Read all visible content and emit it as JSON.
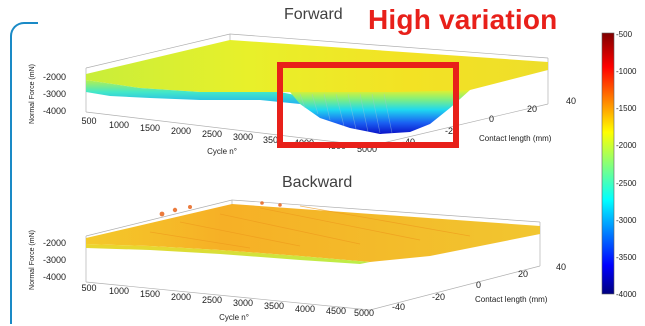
{
  "annotation": "High variation",
  "chart_data": [
    {
      "type": "surface",
      "title": "Forward",
      "xlabel": "Cycle n°",
      "ylabel": "Contact length (mm)",
      "zlabel": "Normal Force (mN)",
      "x_ticks": [
        "500",
        "1000",
        "1500",
        "2000",
        "2500",
        "3000",
        "3500",
        "4000",
        "4500",
        "5000"
      ],
      "y_ticks": [
        "-40",
        "-20",
        "0",
        "20",
        "40"
      ],
      "z_ticks": [
        "-2000",
        "-3000",
        "-4000"
      ],
      "xlim": [
        300,
        5000
      ],
      "ylim": [
        -45,
        45
      ],
      "zlim": [
        -4500,
        -1500
      ],
      "cycles": [
        300,
        1000,
        1500,
        2000,
        2500,
        3000,
        3500,
        3800,
        4000,
        4300,
        4500,
        4800,
        5000
      ],
      "force_min": [
        -1700,
        -1800,
        -1850,
        -1900,
        -1900,
        -1850,
        -2100,
        -2400,
        -3000,
        -3800,
        -4200,
        -3800,
        -2600
      ],
      "force_plateau": [
        -1600,
        -1650,
        -1650,
        -1700,
        -1700,
        -1700,
        -1700,
        -1750,
        -1800,
        -1800,
        -1800,
        -1750,
        -1700
      ]
    },
    {
      "type": "surface",
      "title": "Backward",
      "xlabel": "Cycle n°",
      "ylabel": "Contact length (mm)",
      "zlabel": "Normal Force (mN)",
      "x_ticks": [
        "500",
        "1000",
        "1500",
        "2000",
        "2500",
        "3000",
        "3500",
        "4000",
        "4500",
        "5000"
      ],
      "y_ticks": [
        "-40",
        "-20",
        "0",
        "20",
        "40"
      ],
      "z_ticks": [
        "-2000",
        "-3000",
        "-4000"
      ],
      "xlim": [
        300,
        5000
      ],
      "ylim": [
        -45,
        45
      ],
      "zlim": [
        -4500,
        -1500
      ],
      "cycles": [
        300,
        1000,
        1500,
        2000,
        2500,
        3000,
        3500,
        4000,
        4500,
        5000
      ],
      "force_min": [
        -2000,
        -1900,
        -1800,
        -1800,
        -1800,
        -1750,
        -1750,
        -1750,
        -1750,
        -1750
      ],
      "force_plateau": [
        -1650,
        -1550,
        -1500,
        -1500,
        -1500,
        -1500,
        -1500,
        -1500,
        -1500,
        -1500
      ]
    }
  ],
  "colorbar": {
    "ticks": [
      "-500",
      "-1000",
      "-1500",
      "-2000",
      "-2500",
      "-3000",
      "-3500",
      "-4000"
    ],
    "range": [
      -4000,
      -500
    ],
    "colormap": "jet"
  }
}
